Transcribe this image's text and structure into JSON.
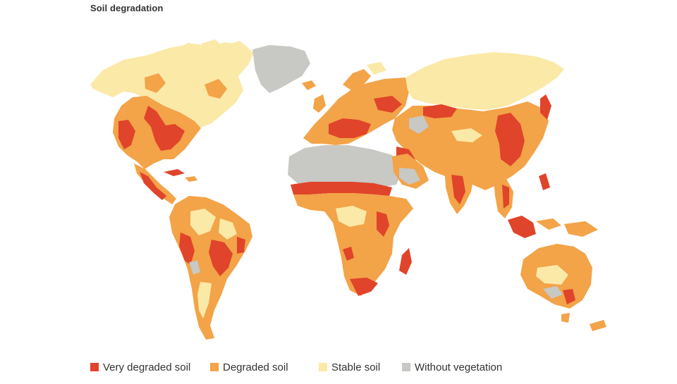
{
  "title": "Soil degradation",
  "legend": [
    {
      "label": "Very degraded soil",
      "color": "#e0442a"
    },
    {
      "label": "Degraded soil",
      "color": "#f3a348"
    },
    {
      "label": "Stable soil",
      "color": "#fbe9a7"
    },
    {
      "label": "Without vegetation",
      "color": "#c8c8c4"
    }
  ],
  "colors": {
    "background": "#ffffff",
    "very_degraded": "#e0442a",
    "degraded": "#f3a348",
    "stable": "#fbe9a7",
    "without_vegetation": "#c8c8c4"
  }
}
